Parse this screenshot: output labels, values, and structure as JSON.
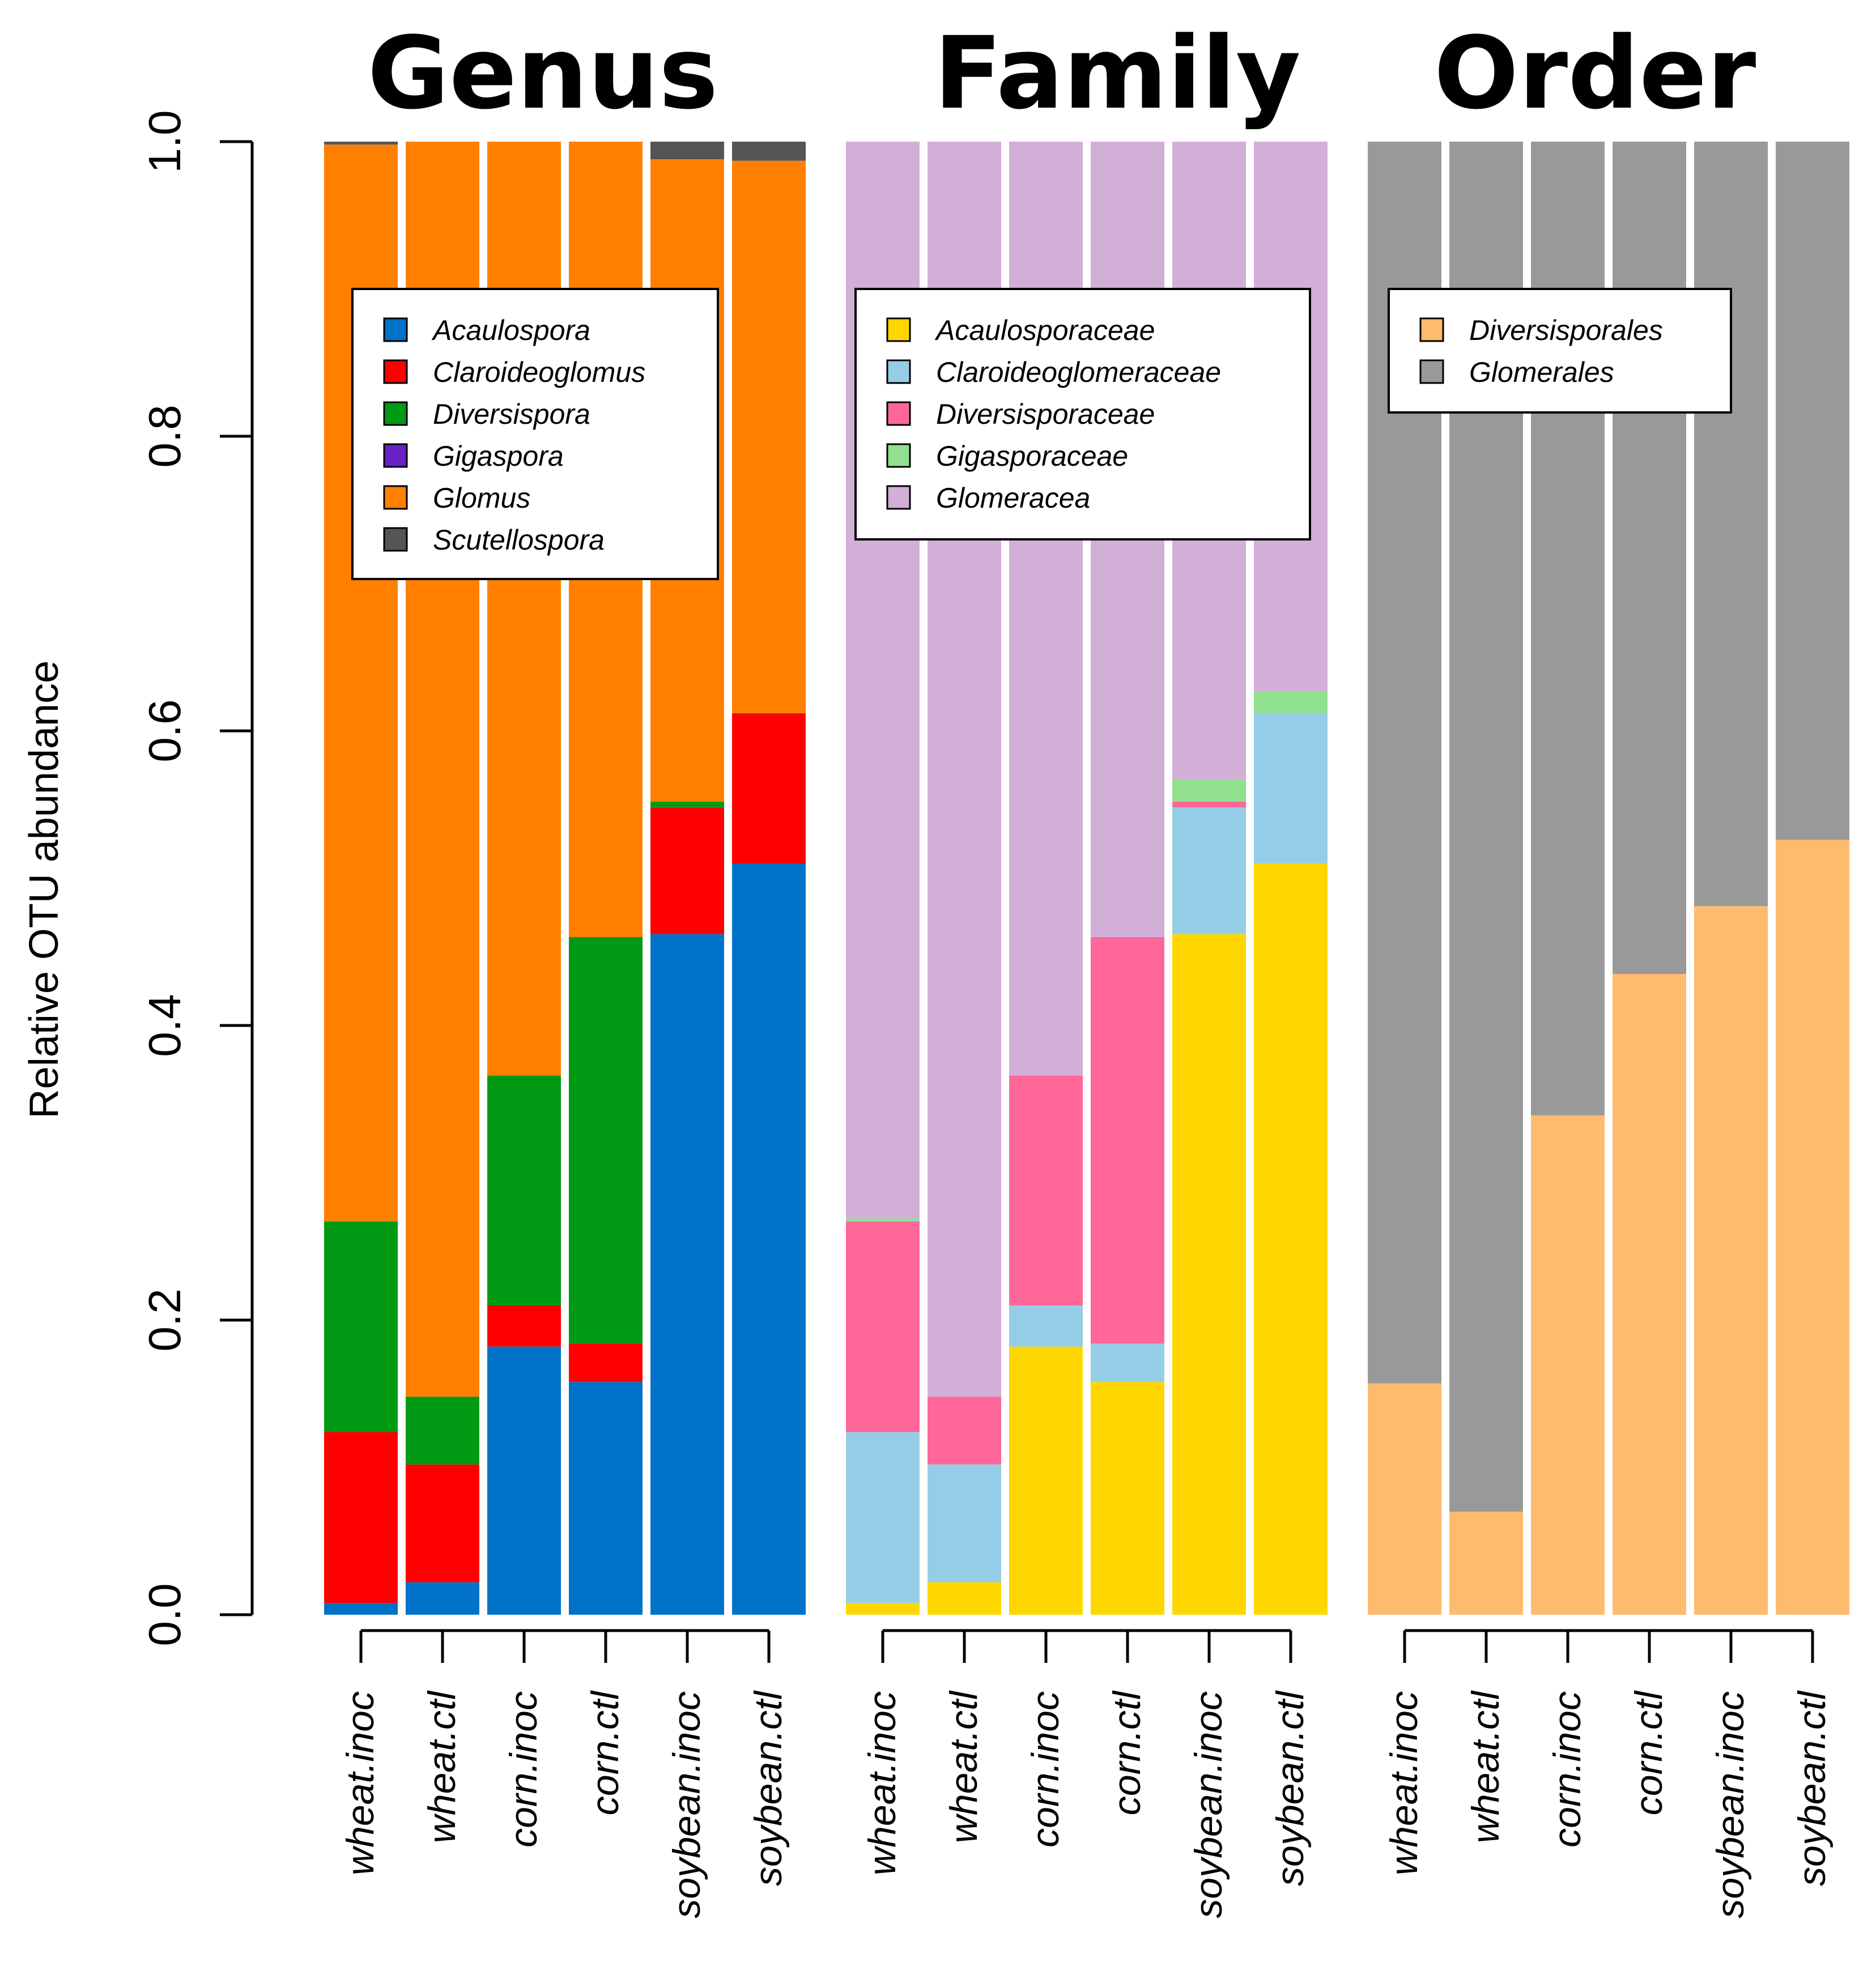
{
  "chart_data": {
    "type": "bar",
    "stacked": true,
    "ylabel": "Relative OTU abundance",
    "ylim": [
      0,
      1.0
    ],
    "yticks": [
      "0.0",
      "0.2",
      "0.4",
      "0.6",
      "0.8",
      "1.0"
    ],
    "categories": [
      "wheat.inoc",
      "wheat.ctl",
      "corn.inoc",
      "corn.ctl",
      "soybean.inoc",
      "soybean.ctl"
    ],
    "panels": [
      {
        "title": "Genus",
        "series": [
          {
            "name": "Acaulospora",
            "color": "#0072C8",
            "values": [
              0.008,
              0.022,
              0.182,
              0.158,
              0.462,
              0.51
            ]
          },
          {
            "name": "Claroideoglomus",
            "color": "#FF0000",
            "values": [
              0.116,
              0.08,
              0.028,
              0.026,
              0.086,
              0.102
            ]
          },
          {
            "name": "Diversispora",
            "color": "#009A14",
            "values": [
              0.143,
              0.046,
              0.156,
              0.276,
              0.004,
              0.0
            ]
          },
          {
            "name": "Gigaspora",
            "color": "#6A22C8",
            "values": [
              0.0,
              0.0,
              0.0,
              0.0,
              0.0,
              0.0
            ]
          },
          {
            "name": "Glomus",
            "color": "#FF8000",
            "values": [
              0.731,
              0.852,
              0.634,
              0.54,
              0.436,
              0.375
            ]
          },
          {
            "name": "Scutellospora",
            "color": "#555555",
            "values": [
              0.002,
              0.0,
              0.0,
              0.0,
              0.012,
              0.013
            ]
          }
        ]
      },
      {
        "title": "Family",
        "series": [
          {
            "name": "Acaulosporaceae",
            "color": "#FFD700",
            "values": [
              0.008,
              0.022,
              0.182,
              0.158,
              0.462,
              0.51
            ]
          },
          {
            "name": "Claroideoglomeraceae",
            "color": "#96CDE6",
            "values": [
              0.116,
              0.08,
              0.028,
              0.026,
              0.086,
              0.102
            ]
          },
          {
            "name": "Diversisporaceae",
            "color": "#FF6699",
            "values": [
              0.143,
              0.046,
              0.156,
              0.276,
              0.004,
              0.0
            ]
          },
          {
            "name": "Gigasporaceae",
            "color": "#90E090",
            "values": [
              0.002,
              0.0,
              0.0,
              0.0,
              0.015,
              0.015
            ]
          },
          {
            "name": "Glomeracea",
            "color": "#D2AFD7",
            "values": [
              0.731,
              0.852,
              0.634,
              0.54,
              0.433,
              0.373
            ]
          }
        ]
      },
      {
        "title": "Order",
        "series": [
          {
            "name": "Diversisporales",
            "color": "#FDBB6D",
            "values": [
              0.157,
              0.07,
              0.339,
              0.435,
              0.481,
              0.526
            ]
          },
          {
            "name": "Glomerales",
            "color": "#999999",
            "values": [
              0.843,
              0.93,
              0.661,
              0.565,
              0.519,
              0.474
            ]
          }
        ]
      }
    ]
  }
}
